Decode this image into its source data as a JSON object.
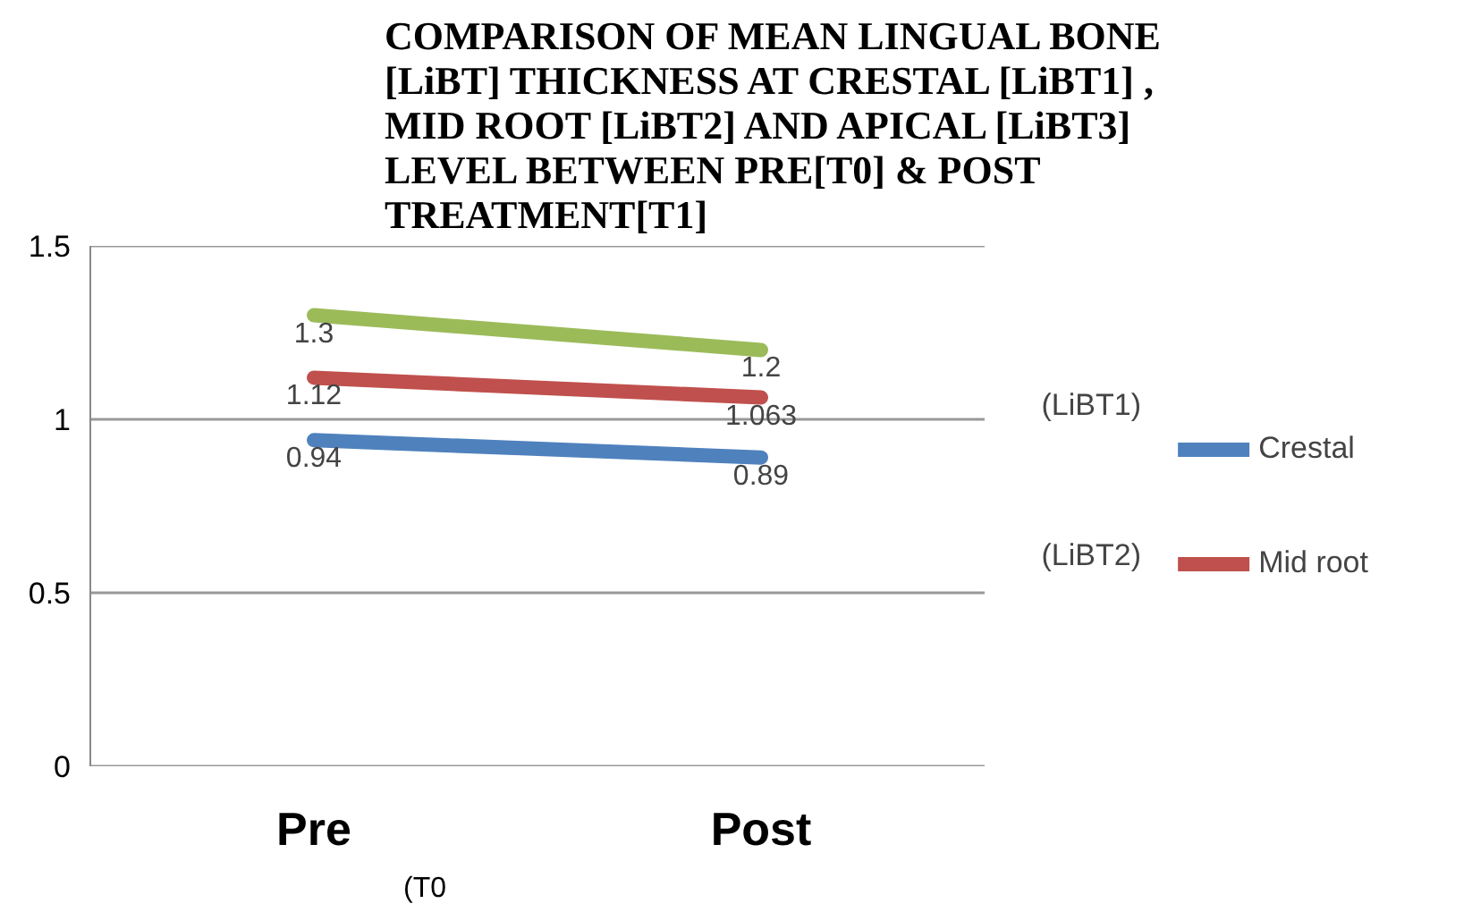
{
  "chart_data": {
    "type": "line",
    "title": "COMPARISON OF MEAN LINGUAL BONE [LiBT] THICKNESS AT CRESTAL [LiBT1] , MID ROOT [LiBT2]  AND APICAL [LiBT3] LEVEL BETWEEN PRE[T0] & POST TREATMENT[T1]",
    "categories": [
      "Pre",
      "Post"
    ],
    "series": [
      {
        "name": "Crestal",
        "color": "#4f81bd",
        "values": [
          0.94,
          0.89
        ]
      },
      {
        "name": "Mid root",
        "color": "#c0504d",
        "values": [
          1.12,
          1.063
        ]
      },
      {
        "color": "#9bbb59",
        "values": [
          1.3,
          1.2
        ]
      }
    ],
    "ylim": [
      0,
      1.5
    ],
    "yticks": [
      0,
      0.5,
      1,
      1.5
    ],
    "grid": "y",
    "legend": "right",
    "data_labels": true,
    "line_style": "solid",
    "annotations": [
      "(LiBT1)",
      "(LiBT2)",
      "(T0"
    ]
  }
}
